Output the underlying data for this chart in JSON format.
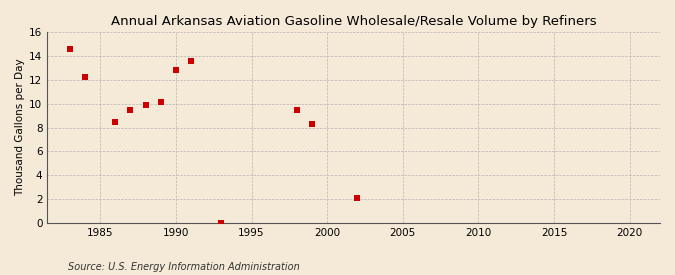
{
  "title": "Annual Arkansas Aviation Gasoline Wholesale/Resale Volume by Refiners",
  "ylabel": "Thousand Gallons per Day",
  "source": "Source: U.S. Energy Information Administration",
  "background_color": "#f5ead8",
  "plot_bg_color": "#f5ead8",
  "marker_color": "#cc0000",
  "grid_color": "#b0b0b0",
  "xlim": [
    1981.5,
    2022
  ],
  "ylim": [
    0,
    16
  ],
  "xticks": [
    1985,
    1990,
    1995,
    2000,
    2005,
    2010,
    2015,
    2020
  ],
  "yticks": [
    0,
    2,
    4,
    6,
    8,
    10,
    12,
    14,
    16
  ],
  "data_x": [
    1983,
    1984,
    1986,
    1987,
    1988,
    1989,
    1990,
    1991,
    1993,
    1998,
    1999,
    2002
  ],
  "data_y": [
    14.6,
    12.2,
    8.5,
    9.5,
    9.9,
    10.1,
    12.8,
    13.6,
    0.05,
    9.5,
    8.3,
    2.1
  ],
  "title_fontsize": 9.5,
  "label_fontsize": 7.5,
  "tick_fontsize": 7.5,
  "source_fontsize": 7.0
}
